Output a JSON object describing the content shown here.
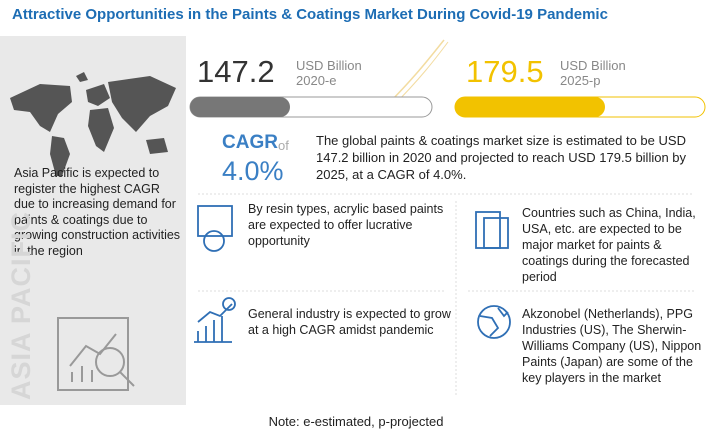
{
  "header": {
    "title": "Attractive Opportunities in the Paints & Coatings Market During Covid-19 Pandemic"
  },
  "region": {
    "text": "Asia Pacific is expected to register the highest CAGR due to increasing demand for paints & coatings due to growing construction activities in the region",
    "label": "ASIA PACIFIC"
  },
  "stats": [
    {
      "value": 147.2,
      "unit": "USD Billion",
      "year": "2020-e"
    },
    {
      "value": 179.5,
      "unit": "USD Billion",
      "year": "2025-p"
    }
  ],
  "cagr": {
    "label": "CAGR",
    "of": "of",
    "value": "4.0%"
  },
  "summary": "The global paints & coatings market size is estimated to be USD 147.2 billion in 2020 and projected to reach USD 179.5 billion by 2025, at a CAGR of 4.0%.",
  "insights": [
    "By resin types, acrylic based paints are expected to offer lucrative opportunity",
    "Countries such as China, India, USA, etc. are expected to be major market for paints & coatings during the forecasted period",
    "General industry is expected to grow at a high CAGR amidst pandemic",
    "Akzonobel (Netherlands), PPG Industries (US), The Sherwin-Williams Company (US), Nippon Paints (Japan) are some of the key players in the market"
  ],
  "note": "Note: e-estimated, p-projected"
}
